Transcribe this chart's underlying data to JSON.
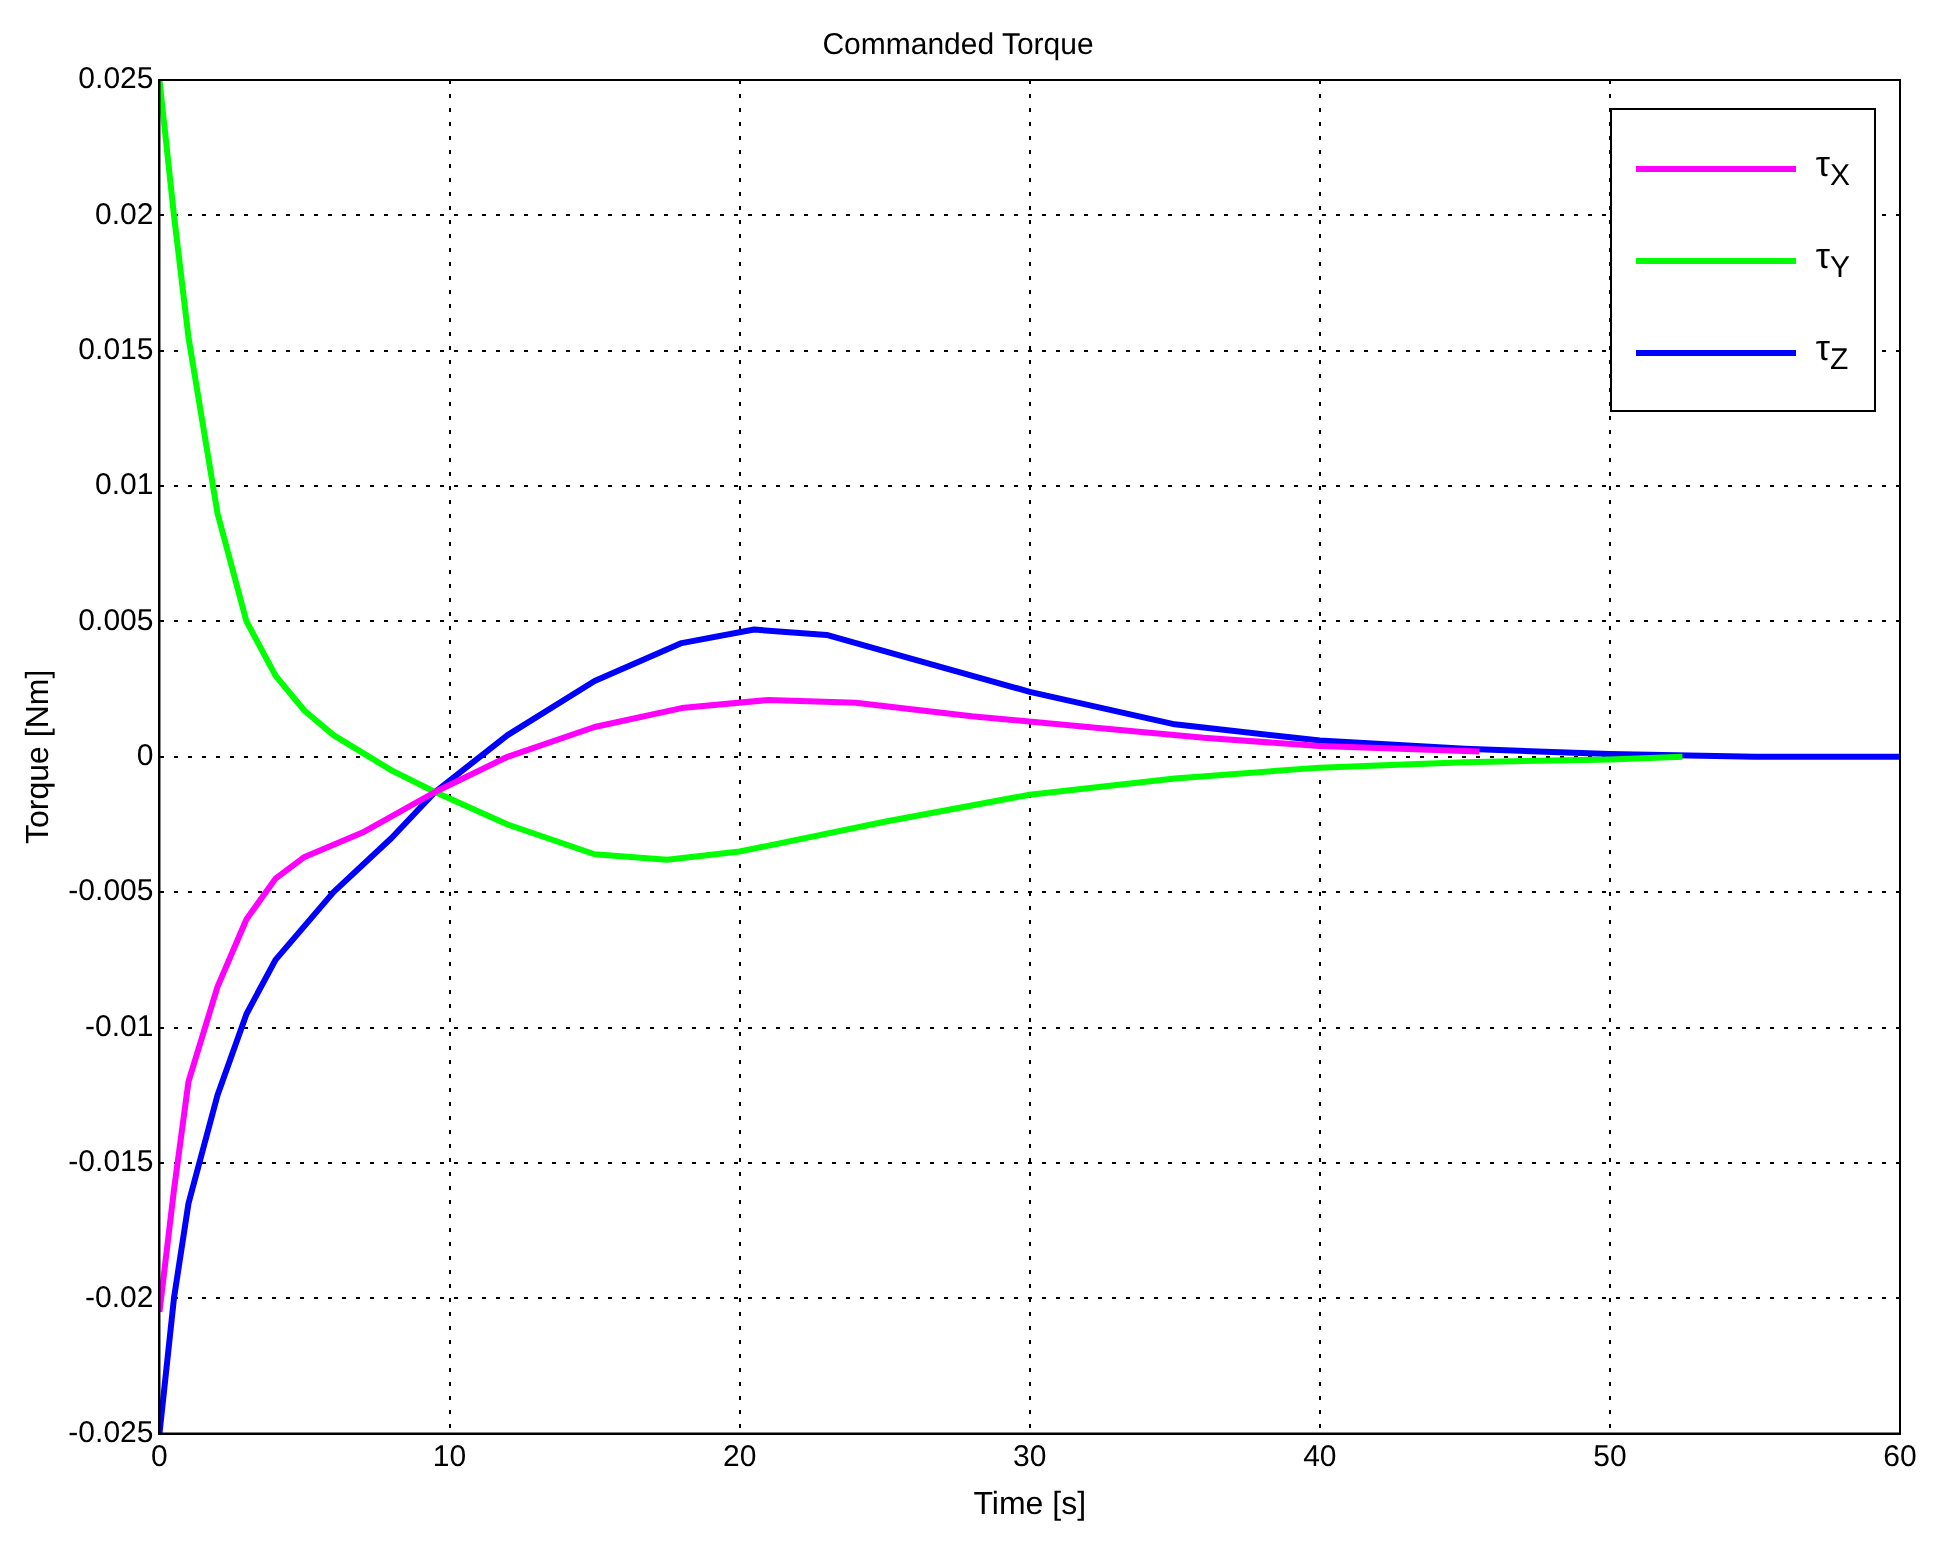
{
  "chart_data": {
    "type": "line",
    "title": "Commanded Torque",
    "xlabel": "Time [s]",
    "ylabel": "Torque [Nm]",
    "xlim": [
      0,
      60
    ],
    "xticks": [
      0,
      10,
      20,
      30,
      40,
      50,
      60
    ],
    "ylim": [
      -0.025,
      0.025
    ],
    "yticks": [
      -0.025,
      -0.02,
      -0.015,
      -0.01,
      -0.005,
      0,
      0.005,
      0.01,
      0.015,
      0.02,
      0.025
    ],
    "grid": true,
    "legend": "top right",
    "marker": "none",
    "line_style": "solid",
    "series": [
      {
        "name": "τ$_{X}$",
        "color": "#ff00ff",
        "x": [
          0,
          0.5,
          1,
          2,
          3,
          4,
          5,
          7,
          9.5,
          12,
          15,
          18,
          21,
          24,
          28,
          32,
          36,
          40,
          45.5
        ],
        "values": [
          -0.0205,
          -0.016,
          -0.012,
          -0.0085,
          -0.006,
          -0.0045,
          -0.0037,
          -0.0028,
          -0.0013,
          0,
          0.0011,
          0.0018,
          0.0021,
          0.002,
          0.0015,
          0.0011,
          0.0007,
          0.0004,
          0.0002
        ]
      },
      {
        "name": "τ$_{Y}$",
        "color": "#00ff00",
        "x": [
          0,
          0.5,
          1,
          2,
          3,
          4,
          5,
          6,
          8,
          9.5,
          12,
          15,
          17.5,
          20,
          25,
          30,
          35,
          40,
          45,
          50,
          52.5
        ],
        "values": [
          0.025,
          0.02,
          0.0155,
          0.009,
          0.005,
          0.003,
          0.0017,
          0.0008,
          -0.0005,
          -0.0013,
          -0.0025,
          -0.0036,
          -0.0038,
          -0.0035,
          -0.0024,
          -0.0014,
          -0.0008,
          -0.0004,
          -0.0002,
          -0.0001,
          0
        ]
      },
      {
        "name": "τ$_{Z}$",
        "color": "#0000ff",
        "x": [
          0,
          0.5,
          1,
          2,
          3,
          4,
          6,
          8,
          9.5,
          12,
          15,
          18,
          20.5,
          23,
          26,
          30,
          35,
          40,
          45,
          50,
          55,
          60
        ],
        "values": [
          -0.025,
          -0.02,
          -0.0165,
          -0.0125,
          -0.0095,
          -0.0075,
          -0.005,
          -0.003,
          -0.0013,
          0.0008,
          0.0028,
          0.0042,
          0.0047,
          0.0045,
          0.0036,
          0.0024,
          0.0012,
          0.0006,
          0.0003,
          0.0001,
          0,
          0
        ]
      }
    ]
  }
}
